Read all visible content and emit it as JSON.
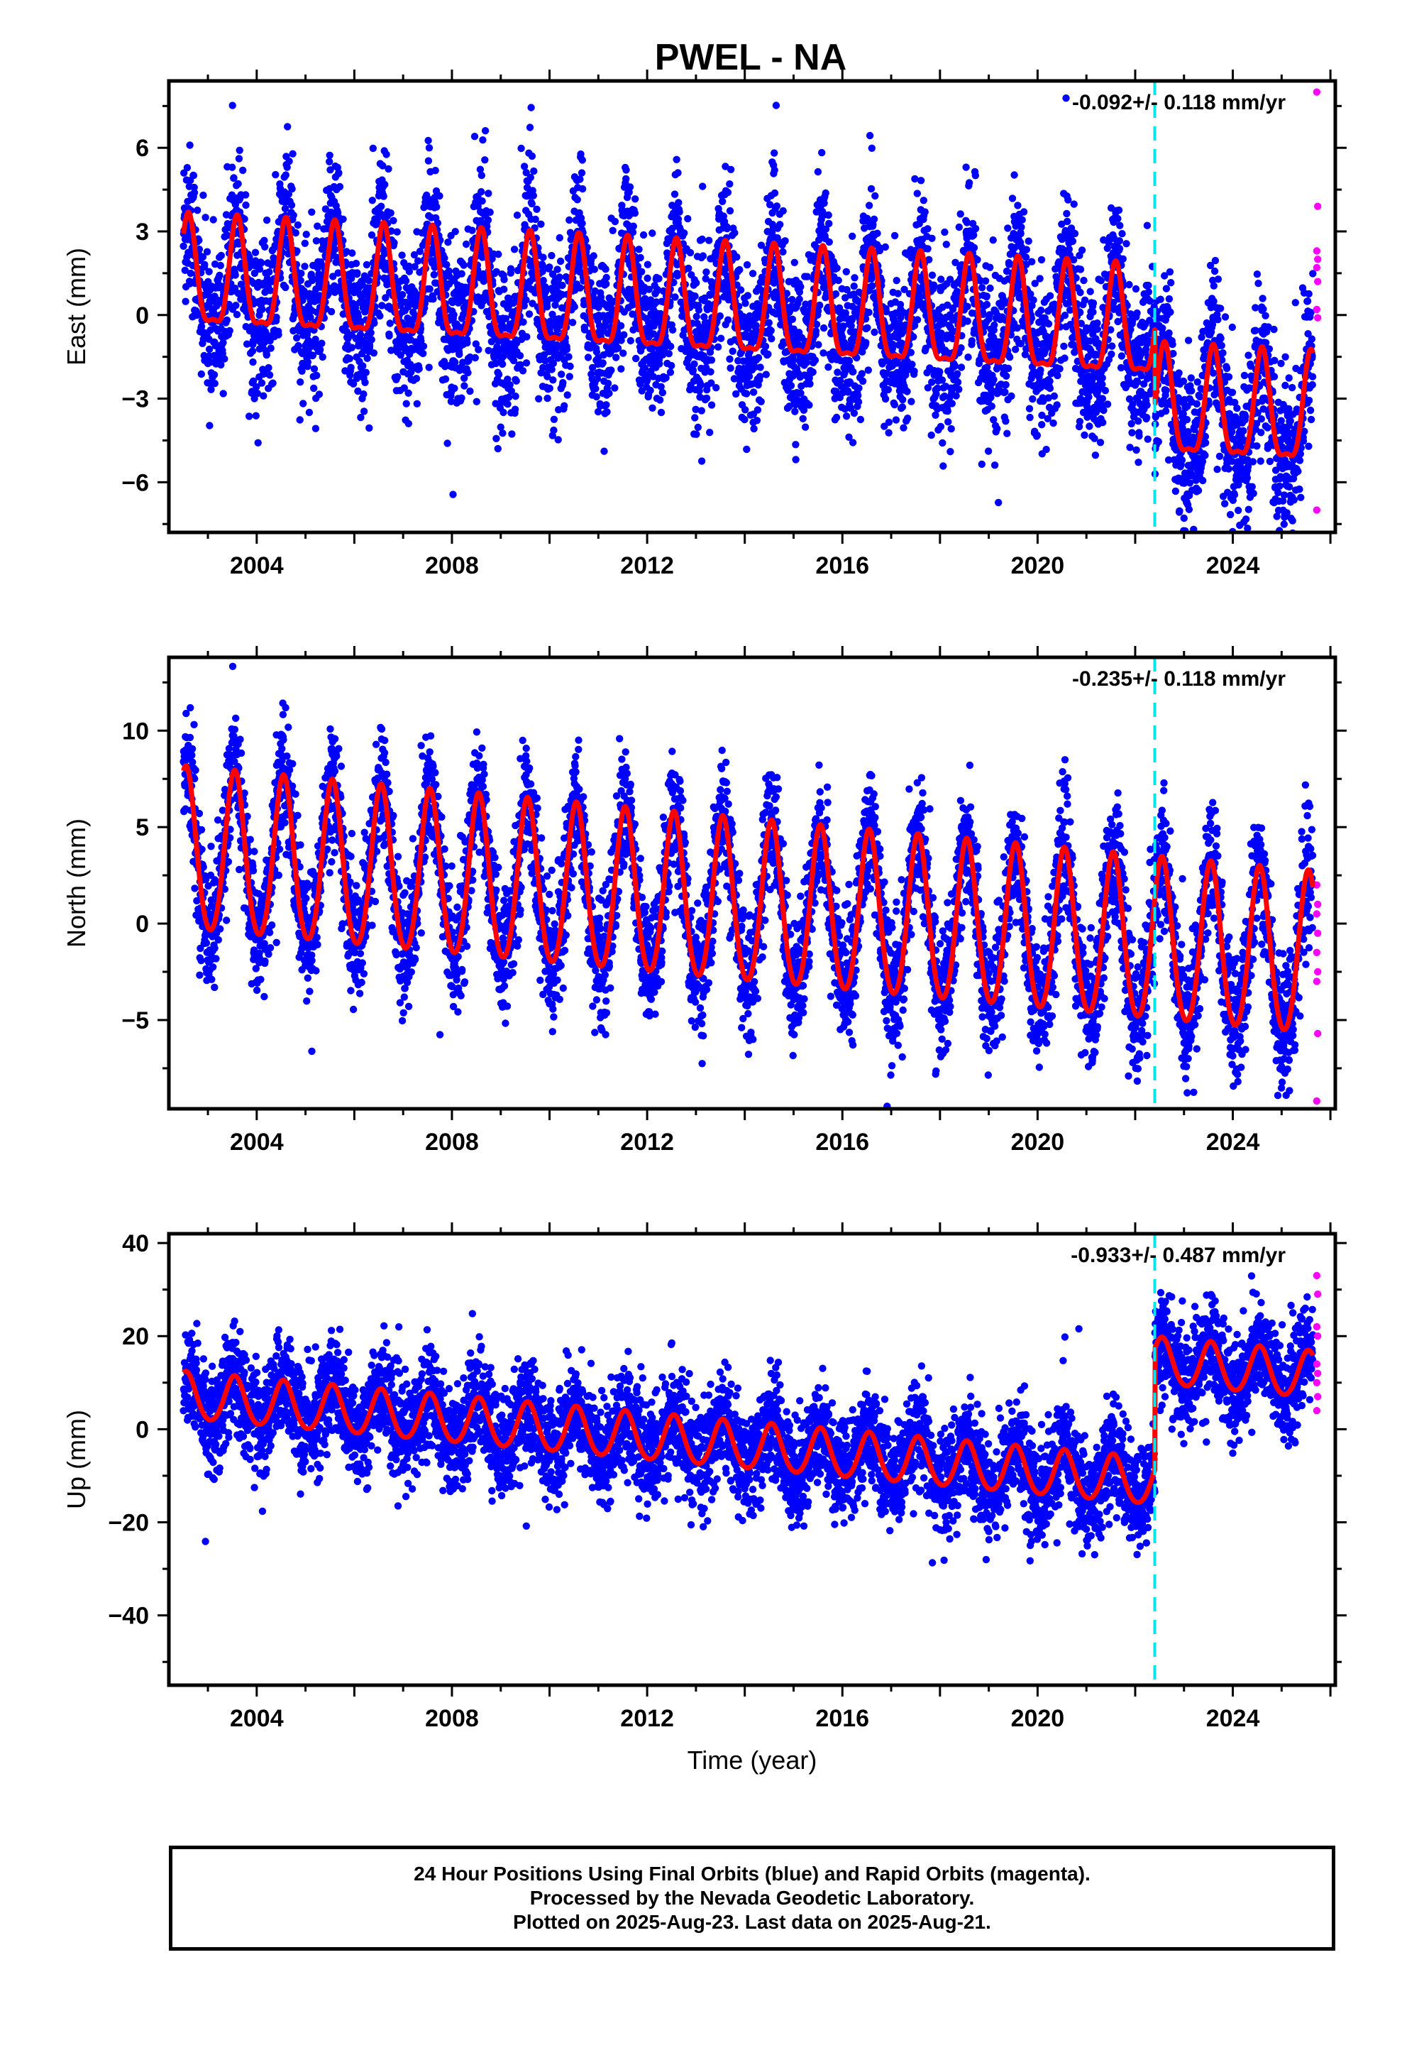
{
  "title": "PWEL - NA",
  "colors": {
    "final_orbits": "#0000ff",
    "rapid_orbits": "#ff00ff",
    "model": "#ff0000",
    "event_marker": "#00e5ee",
    "frame": "#000000"
  },
  "footer": {
    "line1": "24 Hour Positions Using Final Orbits (blue) and Rapid Orbits (magenta).",
    "line2": "Processed by the Nevada Geodetic Laboratory.",
    "line3": "Plotted on 2025-Aug-23. Last data on 2025-Aug-21."
  },
  "chart_data": [
    {
      "type": "scatter",
      "panel": "east",
      "title": "PWEL - NA",
      "xlabel": "",
      "ylabel": "East (mm)",
      "xlim": [
        2002.2,
        2026.1
      ],
      "ylim": [
        -7.8,
        8.4
      ],
      "xticks": [
        2004,
        2008,
        2012,
        2016,
        2020,
        2024
      ],
      "xtick_labels": [
        "2004",
        "2008",
        "2012",
        "2016",
        "2020",
        "2024"
      ],
      "yticks": [
        -6,
        -3,
        0,
        3,
        6
      ],
      "ytick_labels": [
        "−6",
        "−3",
        "0",
        "3",
        "6"
      ],
      "rate_annotation": "-0.092+/- 0.118 mm/yr",
      "event_line_x": 2022.4,
      "data_span": [
        2002.5,
        2025.64
      ],
      "model": {
        "offset": 1.2,
        "trend_mm_per_yr": -0.092,
        "annual_amplitude": 1.9,
        "annual_peak_phase": 0.6,
        "semiannual_amplitude": 0.6,
        "step_at": 2022.4,
        "step_mm": -2.8
      },
      "scatter_sigma_mm": 1.4,
      "rapid_points": [
        8.0,
        3.9,
        2.3,
        2.0,
        1.7,
        1.2,
        0.2,
        -0.1,
        -7.0
      ],
      "grid": false
    },
    {
      "type": "scatter",
      "panel": "north",
      "xlabel": "",
      "ylabel": "North (mm)",
      "xlim": [
        2002.2,
        2026.1
      ],
      "ylim": [
        -9.6,
        13.8
      ],
      "xticks": [
        2004,
        2008,
        2012,
        2016,
        2020,
        2024
      ],
      "xtick_labels": [
        "2004",
        "2008",
        "2012",
        "2016",
        "2020",
        "2024"
      ],
      "yticks": [
        -5,
        0,
        5,
        10
      ],
      "ytick_labels": [
        "−5",
        "0",
        "5",
        "10"
      ],
      "rate_annotation": "-0.235+/- 0.118 mm/yr",
      "event_line_x": 2022.4,
      "data_span": [
        2002.5,
        2025.64
      ],
      "model": {
        "offset": 3.6,
        "trend_mm_per_yr": -0.235,
        "annual_amplitude": 4.2,
        "annual_peak_phase": 0.55,
        "semiannual_amplitude": 0.4,
        "step_at": 2022.4,
        "step_mm": 0
      },
      "scatter_sigma_mm": 1.6,
      "rapid_points": [
        2.0,
        1.0,
        0.5,
        -0.5,
        -1.5,
        -2.5,
        -3.0,
        -5.7,
        -9.2
      ],
      "grid": false
    },
    {
      "type": "scatter",
      "panel": "up",
      "xlabel": "Time (year)",
      "ylabel": "Up (mm)",
      "xlim": [
        2002.2,
        2026.1
      ],
      "ylim": [
        -55,
        42
      ],
      "xticks": [
        2004,
        2008,
        2012,
        2016,
        2020,
        2024
      ],
      "xtick_labels": [
        "2004",
        "2008",
        "2012",
        "2016",
        "2020",
        "2024"
      ],
      "yticks": [
        -40,
        -20,
        0,
        20,
        40
      ],
      "ytick_labels": [
        "−40",
        "−20",
        "0",
        "20",
        "40"
      ],
      "rate_annotation": "-0.933+/- 0.487 mm/yr",
      "event_line_x": 2022.4,
      "data_span": [
        2002.5,
        2025.64
      ],
      "model": {
        "offset": 7.0,
        "trend_mm_per_yr": -0.933,
        "annual_amplitude": 5.0,
        "annual_peak_phase": 0.55,
        "semiannual_amplitude": 0.5,
        "step_at": 2022.4,
        "step_mm": 26.0
      },
      "scatter_sigma_mm": 5.5,
      "rapid_points": [
        33.0,
        29.0,
        22.0,
        20.0,
        14.0,
        12.0,
        10.0,
        7.0,
        4.0
      ],
      "grid": false
    }
  ]
}
